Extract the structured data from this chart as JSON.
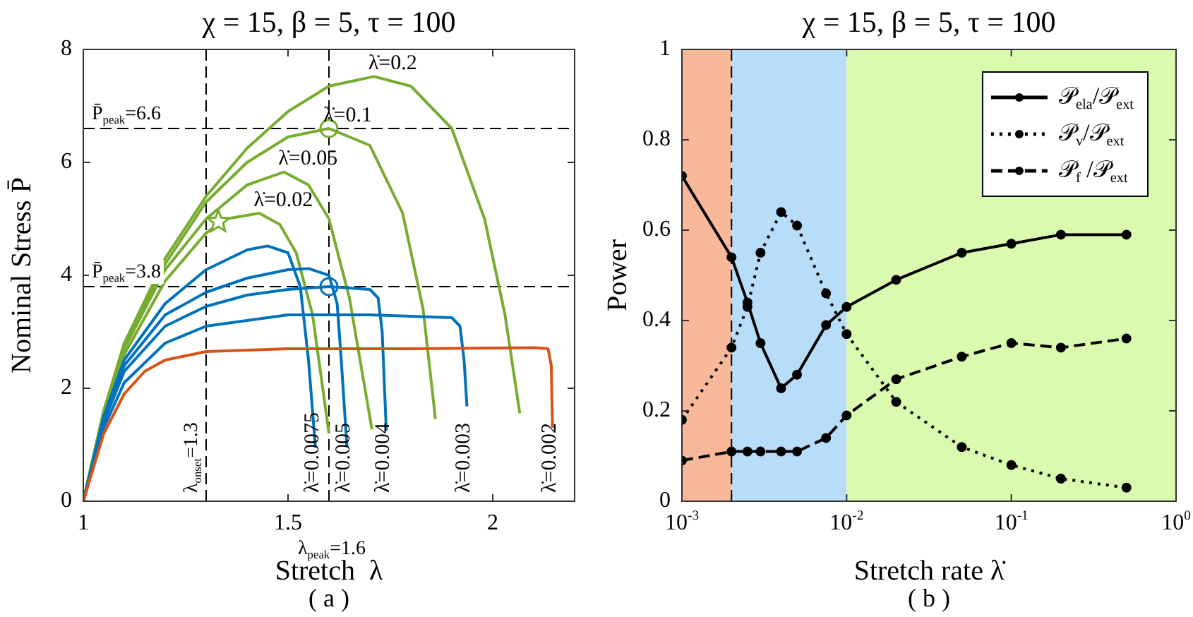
{
  "chart_data": [
    {
      "type": "line",
      "title": "χ = 15, β = 5, τ = 100",
      "xlabel": "Stretch  λ",
      "ylabel": "Nominal Stress P̄",
      "xlim": [
        1,
        2.2
      ],
      "xticks": [
        1,
        1.5,
        2
      ],
      "ylim": [
        0,
        8
      ],
      "yticks": [
        0,
        2,
        4,
        6,
        8
      ],
      "grid": false,
      "marker": "none",
      "line_style": "solid",
      "series": [
        {
          "name": "λ̇=0.002",
          "color": "#d95319",
          "x": [
            1,
            1.05,
            1.1,
            1.15,
            1.2,
            1.3,
            1.5,
            1.8,
            2.1,
            2.135,
            2.143,
            2.146
          ],
          "values": [
            0,
            1.2,
            1.9,
            2.3,
            2.5,
            2.65,
            2.7,
            2.7,
            2.72,
            2.7,
            2.4,
            1.3
          ]
        },
        {
          "name": "λ̇=0.003",
          "color": "#0072bd",
          "x": [
            1,
            1.05,
            1.1,
            1.2,
            1.3,
            1.5,
            1.7,
            1.9,
            1.92,
            1.93,
            1.937
          ],
          "values": [
            0,
            1.3,
            2.1,
            2.8,
            3.1,
            3.3,
            3.3,
            3.25,
            3.1,
            2.5,
            1.68
          ]
        },
        {
          "name": "λ̇=0.004",
          "color": "#0072bd",
          "x": [
            1,
            1.05,
            1.1,
            1.2,
            1.3,
            1.4,
            1.5,
            1.6,
            1.7,
            1.72,
            1.73,
            1.74
          ],
          "values": [
            0,
            1.4,
            2.3,
            3.1,
            3.45,
            3.65,
            3.75,
            3.8,
            3.75,
            3.6,
            3.0,
            1.25
          ]
        },
        {
          "name": "λ̇=0.005",
          "color": "#0072bd",
          "x": [
            1,
            1.05,
            1.1,
            1.2,
            1.3,
            1.4,
            1.5,
            1.55,
            1.6,
            1.62,
            1.63,
            1.644
          ],
          "values": [
            0,
            1.45,
            2.4,
            3.3,
            3.7,
            3.95,
            4.1,
            4.12,
            4.0,
            3.5,
            2.5,
            0.96
          ]
        },
        {
          "name": "λ̇=0.0075",
          "color": "#0072bd",
          "x": [
            1,
            1.05,
            1.1,
            1.2,
            1.3,
            1.4,
            1.45,
            1.5,
            1.53,
            1.55,
            1.567
          ],
          "values": [
            0,
            1.5,
            2.5,
            3.5,
            4.1,
            4.45,
            4.52,
            4.4,
            3.8,
            2.5,
            0.95
          ]
        },
        {
          "name": "λ̇=0.02",
          "color": "#77ac30",
          "x": [
            1,
            1.05,
            1.1,
            1.2,
            1.3,
            1.35,
            1.43,
            1.48,
            1.52,
            1.56,
            1.6
          ],
          "values": [
            0,
            1.55,
            2.6,
            3.9,
            4.75,
            5.0,
            5.1,
            4.9,
            4.4,
            3.3,
            1.2
          ]
        },
        {
          "name": "λ̇=0.05",
          "color": "#77ac30",
          "x": [
            1,
            1.05,
            1.1,
            1.2,
            1.3,
            1.4,
            1.49,
            1.55,
            1.6,
            1.65,
            1.705
          ],
          "values": [
            0,
            1.6,
            2.7,
            4.1,
            5.0,
            5.6,
            5.83,
            5.6,
            5.0,
            3.6,
            1.27
          ]
        },
        {
          "name": "λ̇=0.1",
          "color": "#77ac30",
          "x": [
            1,
            1.05,
            1.1,
            1.2,
            1.3,
            1.4,
            1.5,
            1.6,
            1.7,
            1.78,
            1.83,
            1.86
          ],
          "values": [
            0,
            1.6,
            2.75,
            4.2,
            5.3,
            6.0,
            6.45,
            6.6,
            6.3,
            5.1,
            3.4,
            1.46
          ]
        },
        {
          "name": "λ̇=0.2",
          "color": "#77ac30",
          "x": [
            1,
            1.05,
            1.1,
            1.2,
            1.3,
            1.4,
            1.5,
            1.6,
            1.71,
            1.8,
            1.9,
            1.98,
            2.03,
            2.066
          ],
          "values": [
            0,
            1.6,
            2.8,
            4.3,
            5.4,
            6.25,
            6.9,
            7.35,
            7.52,
            7.35,
            6.6,
            5.0,
            3.3,
            1.56
          ]
        },
        {
          "type": "scatter",
          "marker": "star",
          "color": "#77ac30",
          "x": [
            1.33
          ],
          "values": [
            4.95
          ]
        },
        {
          "type": "scatter",
          "marker": "circle",
          "color": "#77ac30",
          "x": [
            1.6
          ],
          "values": [
            6.6
          ]
        },
        {
          "type": "scatter",
          "marker": "circle",
          "color": "#0072bd",
          "x": [
            1.6
          ],
          "values": [
            3.8
          ]
        }
      ],
      "ref_lines": [
        {
          "axis": "y",
          "value": 6.6,
          "label": "P̄$_{peak}$=6.6",
          "color": "#000000",
          "line_style": "dashed"
        },
        {
          "axis": "y",
          "value": 3.8,
          "label": "P̄$_{peak}$=3.8",
          "color": "#000000",
          "line_style": "dashed"
        },
        {
          "axis": "x",
          "value": 1.3,
          "label": "λ$_{onset}$=1.3",
          "color": "#000000",
          "line_style": "dashed"
        },
        {
          "axis": "x",
          "value": 1.6,
          "label": "λ$_{peak}$=1.6",
          "color": "#000000",
          "line_style": "dashed"
        }
      ],
      "annotations": [
        "( a )"
      ]
    },
    {
      "type": "line",
      "title": "χ = 15, β = 5, τ = 100",
      "xlabel": "Stretch rate λ̇",
      "ylabel": "Power",
      "log": "x",
      "xlim": [
        0.001,
        1
      ],
      "xticks": [
        {
          "value": 0.001,
          "label": "10$^{-3}$"
        },
        {
          "value": 0.01,
          "label": "10$^{-2}$"
        },
        {
          "value": 0.1,
          "label": "10$^{-1}$"
        },
        {
          "value": 1,
          "label": "10$^{0}$"
        }
      ],
      "ylim": [
        0,
        1
      ],
      "yticks": [
        0,
        0.2,
        0.4,
        0.6,
        0.8,
        1
      ],
      "grid": false,
      "marker": "circle",
      "legend": "top right",
      "x": [
        0.001,
        0.002,
        0.0025,
        0.003,
        0.004,
        0.005,
        0.0075,
        0.01,
        0.02,
        0.05,
        0.1,
        0.2,
        0.5
      ],
      "series": [
        {
          "name": "𝒫$_{ela}$/𝒫$_{ext}$",
          "color": "#000000",
          "line_style": "solid",
          "values": [
            0.72,
            0.54,
            0.44,
            0.35,
            0.25,
            0.28,
            0.39,
            0.43,
            0.49,
            0.55,
            0.57,
            0.59,
            0.59
          ]
        },
        {
          "name": "𝒫$_{v}$/𝒫$_{ext}$",
          "color": "#000000",
          "line_style": "dotted",
          "values": [
            0.18,
            0.34,
            0.43,
            0.55,
            0.64,
            0.61,
            0.46,
            0.37,
            0.22,
            0.12,
            0.08,
            0.05,
            0.03
          ]
        },
        {
          "name": "𝒫$_{f}$ /𝒫$_{ext}$",
          "color": "#000000",
          "line_style": "dashed",
          "values": [
            0.09,
            0.11,
            0.11,
            0.11,
            0.11,
            0.11,
            0.14,
            0.19,
            0.27,
            0.32,
            0.35,
            0.34,
            0.36
          ]
        }
      ],
      "bands": [
        {
          "axis": "x",
          "from": 0.001,
          "to": 0.002,
          "color": "#f8b89a"
        },
        {
          "axis": "x",
          "from": 0.002,
          "to": 0.01,
          "color": "#b7ddf8"
        },
        {
          "axis": "x",
          "from": 0.01,
          "to": 1,
          "color": "#dafab0"
        }
      ],
      "ref_lines": [
        {
          "axis": "x",
          "value": 0.002,
          "color": "#000000",
          "line_style": "dashed"
        }
      ],
      "annotations": [
        "( b )"
      ]
    }
  ]
}
